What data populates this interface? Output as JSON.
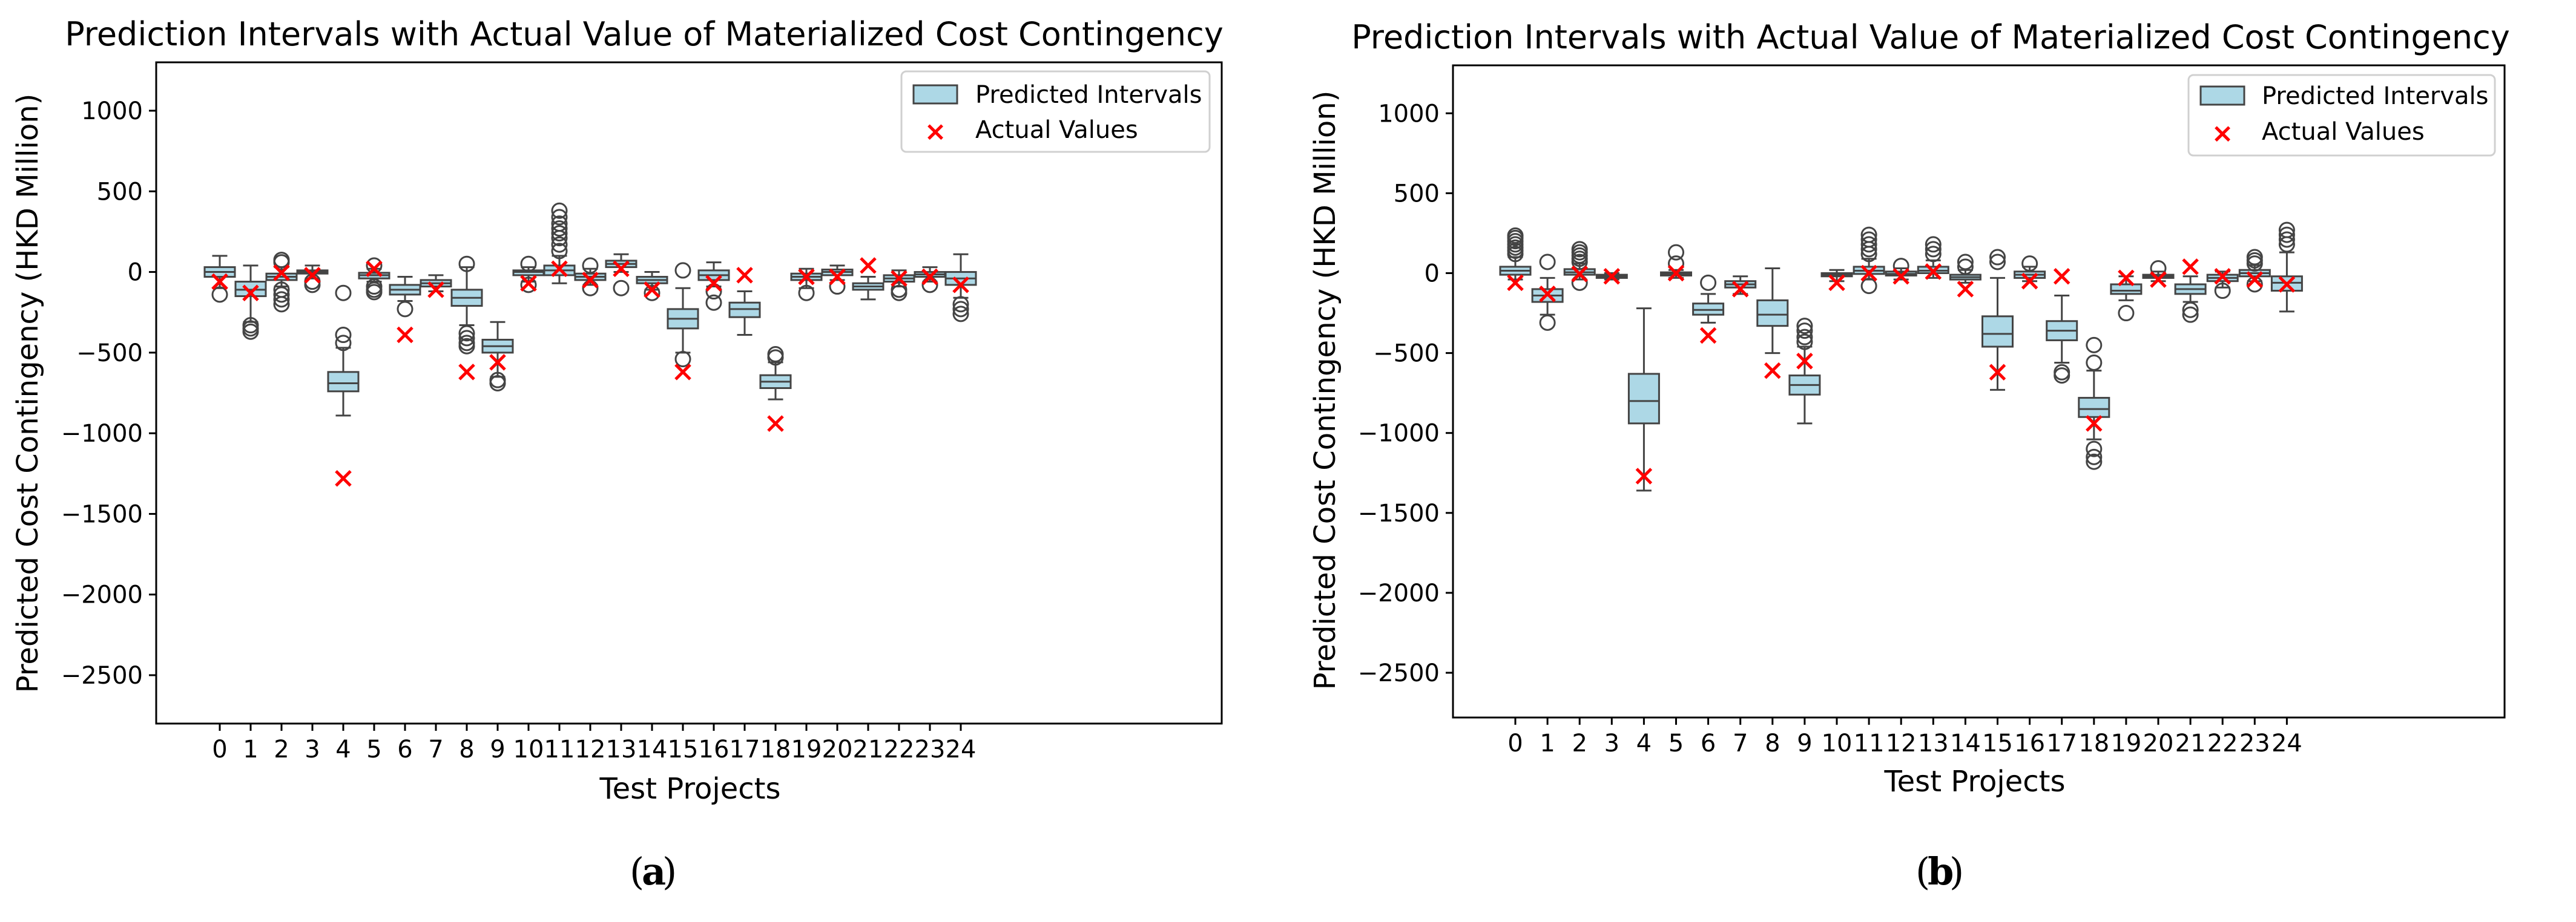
{
  "colors": {
    "box_fill": "#add8e6",
    "box_edge": "#444444",
    "actual_marker": "#ff0000",
    "axes": "#000000"
  },
  "chart_data": [
    {
      "id": "a",
      "type": "box",
      "title": "Prediction Intervals with Actual Value of Materialized Cost Contingency",
      "xlabel": "Test Projects",
      "ylabel": "Predicted Cost Contingency (HKD Million)",
      "caption_letter": "a",
      "ylim": [
        -2800,
        1300
      ],
      "yticks": [
        1000,
        500,
        0,
        -500,
        -1000,
        -1500,
        -2000,
        -2500
      ],
      "ytick_labels": [
        "1000",
        "500",
        "0",
        "−500",
        "−1000",
        "−1500",
        "−2000",
        "−2500"
      ],
      "categories": [
        "0",
        "1",
        "2",
        "3",
        "4",
        "5",
        "6",
        "7",
        "8",
        "9",
        "10",
        "11",
        "12",
        "13",
        "14",
        "15",
        "16",
        "17",
        "18",
        "19",
        "20",
        "21",
        "22",
        "23",
        "24"
      ],
      "legend": {
        "position": "upper-right",
        "items": [
          "Predicted Intervals",
          "Actual Values"
        ]
      },
      "boxes": [
        {
          "whislo": -100,
          "q1": -30,
          "med": 0,
          "q3": 30,
          "whishi": 100,
          "fliers": [
            -140
          ]
        },
        {
          "whislo": -310,
          "q1": -150,
          "med": -110,
          "q3": -60,
          "whishi": 40,
          "fliers": [
            -330,
            -350,
            -370
          ]
        },
        {
          "whislo": -90,
          "q1": -50,
          "med": -30,
          "q3": -10,
          "whishi": 30,
          "fliers": [
            -110,
            -140,
            -170,
            -200,
            60,
            75
          ]
        },
        {
          "whislo": -40,
          "q1": -10,
          "med": 0,
          "q3": 10,
          "whishi": 40,
          "fliers": [
            -60,
            -80
          ]
        },
        {
          "whislo": -890,
          "q1": -740,
          "med": -690,
          "q3": -620,
          "whishi": -470,
          "fliers": [
            -390,
            -440,
            -130
          ]
        },
        {
          "whislo": -60,
          "q1": -40,
          "med": -20,
          "q3": -5,
          "whishi": 20,
          "fliers": [
            -90,
            -110,
            -125,
            40
          ]
        },
        {
          "whislo": -180,
          "q1": -140,
          "med": -110,
          "q3": -80,
          "whishi": -30,
          "fliers": [
            -230
          ]
        },
        {
          "whislo": -120,
          "q1": -90,
          "med": -70,
          "q3": -50,
          "whishi": -20,
          "fliers": []
        },
        {
          "whislo": -330,
          "q1": -210,
          "med": -160,
          "q3": -110,
          "whishi": 30,
          "fliers": [
            -380,
            -410,
            -440,
            -460,
            50
          ]
        },
        {
          "whislo": -650,
          "q1": -500,
          "med": -460,
          "q3": -420,
          "whishi": -310,
          "fliers": [
            -670,
            -690
          ]
        },
        {
          "whislo": -60,
          "q1": -20,
          "med": 0,
          "q3": 10,
          "whishi": 30,
          "fliers": [
            -80,
            50
          ]
        },
        {
          "whislo": -70,
          "q1": -20,
          "med": 10,
          "q3": 40,
          "whishi": 100,
          "fliers": [
            130,
            170,
            210,
            240,
            270,
            300,
            340,
            380
          ]
        },
        {
          "whislo": -80,
          "q1": -50,
          "med": -30,
          "q3": -10,
          "whishi": 20,
          "fliers": [
            -100,
            40
          ]
        },
        {
          "whislo": 0,
          "q1": 30,
          "med": 50,
          "q3": 70,
          "whishi": 110,
          "fliers": [
            -100
          ]
        },
        {
          "whislo": -110,
          "q1": -70,
          "med": -50,
          "q3": -30,
          "whishi": 0,
          "fliers": [
            -130
          ]
        },
        {
          "whislo": -500,
          "q1": -350,
          "med": -290,
          "q3": -230,
          "whishi": -100,
          "fliers": [
            -540,
            10
          ]
        },
        {
          "whislo": -90,
          "q1": -50,
          "med": -20,
          "q3": 10,
          "whishi": 60,
          "fliers": [
            -120,
            -190
          ]
        },
        {
          "whislo": -390,
          "q1": -280,
          "med": -230,
          "q3": -190,
          "whishi": -120,
          "fliers": []
        },
        {
          "whislo": -790,
          "q1": -720,
          "med": -680,
          "q3": -640,
          "whishi": -560,
          "fliers": [
            -510,
            -530
          ]
        },
        {
          "whislo": -100,
          "q1": -50,
          "med": -30,
          "q3": -10,
          "whishi": 20,
          "fliers": [
            -130
          ]
        },
        {
          "whislo": -50,
          "q1": -20,
          "med": 0,
          "q3": 15,
          "whishi": 40,
          "fliers": [
            -90
          ]
        },
        {
          "whislo": -170,
          "q1": -110,
          "med": -90,
          "q3": -70,
          "whishi": -30,
          "fliers": []
        },
        {
          "whislo": -90,
          "q1": -60,
          "med": -40,
          "q3": -20,
          "whishi": 10,
          "fliers": [
            -110,
            -130
          ]
        },
        {
          "whislo": -60,
          "q1": -30,
          "med": -15,
          "q3": 0,
          "whishi": 30,
          "fliers": [
            -80
          ]
        },
        {
          "whislo": -160,
          "q1": -80,
          "med": -40,
          "q3": 0,
          "whishi": 110,
          "fliers": [
            -200,
            -230,
            -260
          ]
        }
      ],
      "actual_values": [
        -60,
        -130,
        -5,
        -20,
        -1280,
        20,
        -390,
        -110,
        -620,
        -560,
        -70,
        20,
        -50,
        20,
        -110,
        -620,
        -70,
        -20,
        -940,
        -30,
        -30,
        40,
        -40,
        -30,
        -80
      ]
    },
    {
      "id": "b",
      "type": "box",
      "title": "Prediction Intervals with Actual Value of Materialized Cost Contingency",
      "xlabel": "Test Projects",
      "ylabel": "Predicted Cost Contingency (HKD Million)",
      "caption_letter": "b",
      "ylim": [
        -2780,
        1300
      ],
      "yticks": [
        1000,
        500,
        0,
        -500,
        -1000,
        -1500,
        -2000,
        -2500
      ],
      "ytick_labels": [
        "1000",
        "500",
        "0",
        "−500",
        "−1000",
        "−1500",
        "−2000",
        "−2500"
      ],
      "categories": [
        "0",
        "1",
        "2",
        "3",
        "4",
        "5",
        "6",
        "7",
        "8",
        "9",
        "10",
        "11",
        "12",
        "13",
        "14",
        "15",
        "16",
        "17",
        "18",
        "19",
        "20",
        "21",
        "22",
        "23",
        "24"
      ],
      "legend": {
        "position": "upper-right",
        "items": [
          "Predicted Intervals",
          "Actual Values"
        ]
      },
      "boxes": [
        {
          "whislo": -40,
          "q1": -10,
          "med": 15,
          "q3": 40,
          "whishi": 100,
          "fliers": [
            120,
            140,
            160,
            180,
            200,
            220,
            235
          ]
        },
        {
          "whislo": -260,
          "q1": -180,
          "med": -140,
          "q3": -100,
          "whishi": -30,
          "fliers": [
            -310,
            70
          ]
        },
        {
          "whislo": -40,
          "q1": -10,
          "med": 5,
          "q3": 25,
          "whishi": 60,
          "fliers": [
            -60,
            70,
            90,
            110,
            130,
            150
          ]
        },
        {
          "whislo": -40,
          "q1": -30,
          "med": -20,
          "q3": -10,
          "whishi": 0,
          "fliers": []
        },
        {
          "whislo": -1360,
          "q1": -940,
          "med": -800,
          "q3": -630,
          "whishi": -220,
          "fliers": []
        },
        {
          "whislo": -30,
          "q1": -15,
          "med": -5,
          "q3": 5,
          "whishi": 20,
          "fliers": [
            60,
            130
          ]
        },
        {
          "whislo": -310,
          "q1": -260,
          "med": -230,
          "q3": -190,
          "whishi": -130,
          "fliers": [
            -60
          ]
        },
        {
          "whislo": -130,
          "q1": -90,
          "med": -70,
          "q3": -50,
          "whishi": -20,
          "fliers": []
        },
        {
          "whislo": -500,
          "q1": -330,
          "med": -260,
          "q3": -170,
          "whishi": 30,
          "fliers": []
        },
        {
          "whislo": -940,
          "q1": -760,
          "med": -700,
          "q3": -640,
          "whishi": -460,
          "fliers": [
            -330,
            -360,
            -400,
            -430
          ]
        },
        {
          "whislo": -50,
          "q1": -20,
          "med": -10,
          "q3": 0,
          "whishi": 20,
          "fliers": []
        },
        {
          "whislo": -40,
          "q1": -5,
          "med": 15,
          "q3": 40,
          "whishi": 90,
          "fliers": [
            -80,
            120,
            150,
            180,
            210,
            240
          ]
        },
        {
          "whislo": -40,
          "q1": -15,
          "med": -5,
          "q3": 10,
          "whishi": 30,
          "fliers": [
            45
          ]
        },
        {
          "whislo": -30,
          "q1": 0,
          "med": 15,
          "q3": 40,
          "whishi": 80,
          "fliers": [
            120,
            150,
            180
          ]
        },
        {
          "whislo": -60,
          "q1": -40,
          "med": -25,
          "q3": -10,
          "whishi": 20,
          "fliers": [
            40,
            70
          ]
        },
        {
          "whislo": -730,
          "q1": -460,
          "med": -380,
          "q3": -270,
          "whishi": -30,
          "fliers": [
            70,
            100
          ]
        },
        {
          "whislo": -50,
          "q1": -30,
          "med": -10,
          "q3": 10,
          "whishi": 40,
          "fliers": [
            60
          ]
        },
        {
          "whislo": -560,
          "q1": -420,
          "med": -360,
          "q3": -300,
          "whishi": -140,
          "fliers": [
            -620,
            -640
          ]
        },
        {
          "whislo": -1040,
          "q1": -900,
          "med": -850,
          "q3": -780,
          "whishi": -610,
          "fliers": [
            -450,
            -560,
            -1100,
            -1150,
            -1180
          ]
        },
        {
          "whislo": -170,
          "q1": -130,
          "med": -110,
          "q3": -70,
          "whishi": -20,
          "fliers": [
            -250
          ]
        },
        {
          "whislo": -50,
          "q1": -30,
          "med": -20,
          "q3": -10,
          "whishi": 10,
          "fliers": [
            30
          ]
        },
        {
          "whislo": -180,
          "q1": -130,
          "med": -100,
          "q3": -70,
          "whishi": -20,
          "fliers": [
            -230,
            -260
          ]
        },
        {
          "whislo": -90,
          "q1": -50,
          "med": -30,
          "q3": -10,
          "whishi": 10,
          "fliers": [
            -110
          ]
        },
        {
          "whislo": -50,
          "q1": -20,
          "med": 0,
          "q3": 20,
          "whishi": 50,
          "fliers": [
            -70,
            60,
            80,
            100
          ]
        },
        {
          "whislo": -240,
          "q1": -110,
          "med": -60,
          "q3": -20,
          "whishi": 130,
          "fliers": [
            180,
            210,
            240,
            270
          ]
        }
      ],
      "actual_values": [
        -60,
        -130,
        -5,
        -20,
        -1270,
        0,
        -390,
        -100,
        -610,
        -550,
        -60,
        0,
        -20,
        10,
        -100,
        -620,
        -50,
        -20,
        -940,
        -30,
        -40,
        40,
        -20,
        -40,
        -70
      ]
    }
  ]
}
